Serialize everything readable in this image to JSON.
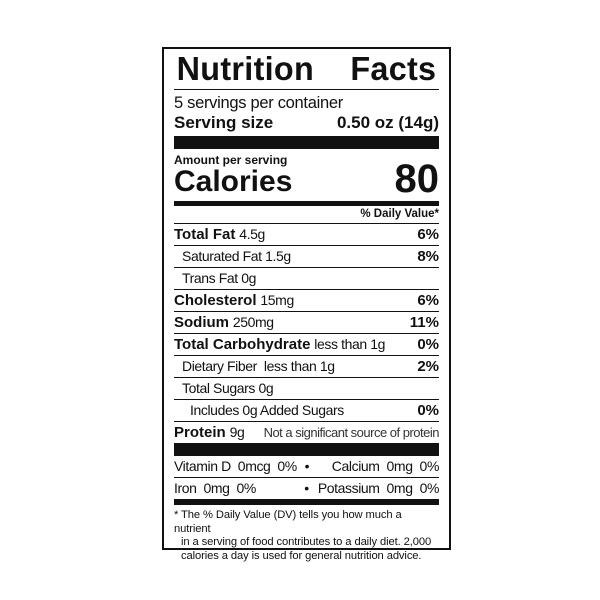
{
  "title": [
    "Nutrition",
    "Facts"
  ],
  "servings_per_container": "5 servings per container",
  "serving_size": {
    "label": "Serving size",
    "value": "0.50 oz (14g)"
  },
  "amount_per_serving": "Amount per serving",
  "calories": {
    "label": "Calories",
    "value": "80"
  },
  "daily_value_header": "% Daily Value*",
  "nutrients": [
    {
      "name": "Total Fat",
      "amount": "4.5g",
      "dv": "6%"
    },
    {
      "name": "Saturated Fat",
      "amount": "1.5g",
      "dv": "8%"
    },
    {
      "name": "Trans Fat",
      "amount": "0g",
      "dv": ""
    },
    {
      "name": "Cholesterol",
      "amount": "15mg",
      "dv": "6%"
    },
    {
      "name": "Sodium",
      "amount": "250mg",
      "dv": "11%"
    },
    {
      "name": "Total Carbohydrate",
      "amount": "less than 1g",
      "dv": "0%"
    },
    {
      "name": "Dietary Fiber",
      "amount": "less than 1g",
      "dv": "2%"
    },
    {
      "name": "Total Sugars",
      "amount": "0g",
      "dv": ""
    },
    {
      "name": "Includes 0g Added Sugars",
      "amount": "",
      "dv": "0%"
    },
    {
      "name": "Protein",
      "amount": "9g",
      "dv": "Not a significant source of protein"
    }
  ],
  "vitamins": [
    {
      "left": "Vitamin D  0mcg  0%",
      "sep": "•",
      "right": "Calcium  0mg  0%"
    },
    {
      "left": "Iron  0mg  0%",
      "sep": "•",
      "right": "Potassium  0mg  0%"
    }
  ],
  "footnote": [
    "* The % Daily Value (DV) tells you how much a nutrient",
    "in a serving of food contributes to a daily diet. 2,000",
    "calories a day is used for general nutrition advice."
  ]
}
